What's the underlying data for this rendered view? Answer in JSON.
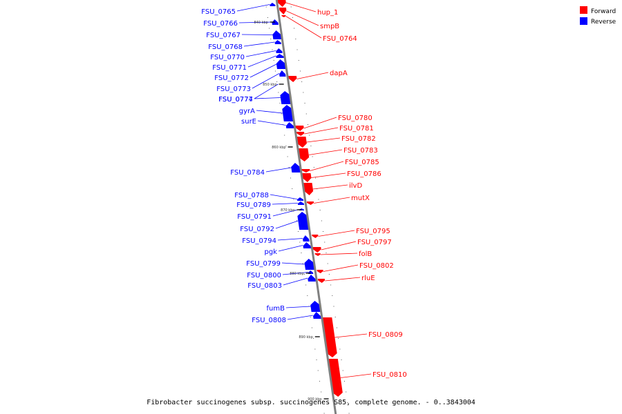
{
  "caption": "Fibrobacter succinogenes subsp. succinogenes S85, complete genome. - 0..3843004",
  "legend": [
    {
      "label": "Forward",
      "color": "#ff0000"
    },
    {
      "label": "Reverse",
      "color": "#0000ff"
    }
  ],
  "colors": {
    "forward": "#ff0000",
    "reverse": "#0000ff",
    "axis": "#808080"
  },
  "ticks": [
    "840 kbp",
    "850 kbp",
    "860 kbp",
    "870 kbp",
    "880 kbp",
    "890 kbp",
    "900 kbp"
  ],
  "reverse_genes": [
    "FSU_0765",
    "FSU_0766",
    "FSU_0767",
    "FSU_0768",
    "FSU_0770",
    "FSU_0771",
    "FSU_0772",
    "FSU_0773",
    "FSU_0774",
    "FSU_0777",
    "gyrA",
    "surE",
    "FSU_0784",
    "FSU_0788",
    "FSU_0789",
    "FSU_0791",
    "FSU_0792",
    "FSU_0794",
    "pgk",
    "FSU_0799",
    "FSU_0800",
    "FSU_0803",
    "fumB",
    "FSU_0808"
  ],
  "forward_genes": [
    "hup_1",
    "smpB",
    "FSU_0764",
    "dapA",
    "FSU_0780",
    "FSU_0781",
    "FSU_0782",
    "FSU_0783",
    "FSU_0785",
    "FSU_0786",
    "ilvD",
    "mutX",
    "FSU_0795",
    "FSU_0797",
    "folB",
    "FSU_0802",
    "rluE",
    "FSU_0809",
    "FSU_0810"
  ]
}
